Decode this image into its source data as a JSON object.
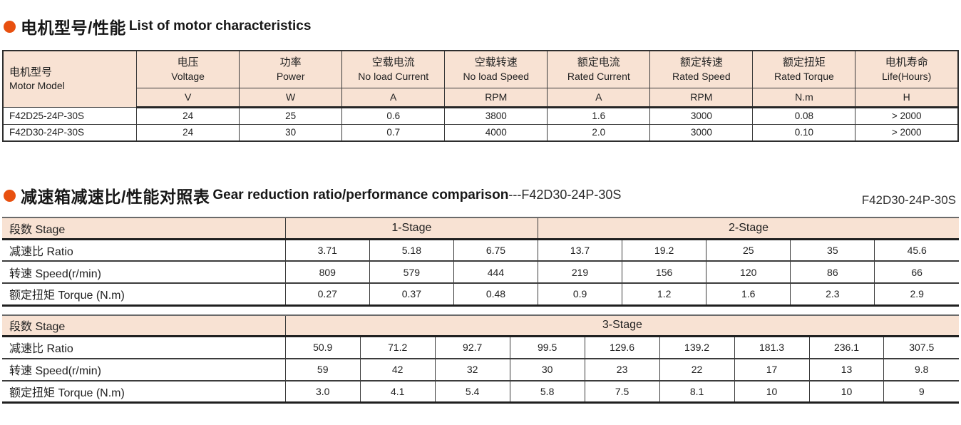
{
  "accent_color": "#e8500f",
  "header_bg": "#f8e2d3",
  "section1": {
    "title_zh": "电机型号/性能",
    "title_en": "List of motor characteristics"
  },
  "motor_table": {
    "model_header_zh": "电机型号",
    "model_header_en": "Motor Model",
    "columns": [
      {
        "zh": "电压",
        "en": "Voltage",
        "unit": "V"
      },
      {
        "zh": "功率",
        "en": "Power",
        "unit": "W"
      },
      {
        "zh": "空载电流",
        "en": "No load Current",
        "unit": "A"
      },
      {
        "zh": "空载转速",
        "en": "No load Speed",
        "unit": "RPM"
      },
      {
        "zh": "额定电流",
        "en": "Rated Current",
        "unit": "A"
      },
      {
        "zh": "额定转速",
        "en": "Rated Speed",
        "unit": "RPM"
      },
      {
        "zh": "额定扭矩",
        "en": "Rated Torque",
        "unit": "N.m"
      },
      {
        "zh": "电机寿命",
        "en": "Life(Hours)",
        "unit": "H"
      }
    ],
    "rows": [
      {
        "model": "F42D25-24P-30S",
        "values": [
          "24",
          "25",
          "0.6",
          "3800",
          "1.6",
          "3000",
          "0.08",
          "> 2000"
        ]
      },
      {
        "model": "F42D30-24P-30S",
        "values": [
          "24",
          "30",
          "0.7",
          "4000",
          "2.0",
          "3000",
          "0.10",
          "> 2000"
        ]
      }
    ]
  },
  "section2": {
    "title_zh": "减速箱减速比/性能对照表",
    "title_en": "Gear reduction ratio/performance comparison",
    "title_suffix": "---F42D30-24P-30S",
    "model_label_right": "F42D30-24P-30S"
  },
  "gear_table_stage12": {
    "stage_header": "段数 Stage",
    "groups": [
      {
        "label": "1-Stage",
        "span": 3
      },
      {
        "label": "2-Stage",
        "span": 5
      }
    ],
    "rows": [
      {
        "label": "减速比 Ratio",
        "values": [
          "3.71",
          "5.18",
          "6.75",
          "13.7",
          "19.2",
          "25",
          "35",
          "45.6"
        ]
      },
      {
        "label": "转速 Speed(r/min)",
        "values": [
          "809",
          "579",
          "444",
          "219",
          "156",
          "120",
          "86",
          "66"
        ]
      },
      {
        "label": "额定扭矩 Torque (N.m)",
        "values": [
          "0.27",
          "0.37",
          "0.48",
          "0.9",
          "1.2",
          "1.6",
          "2.3",
          "2.9"
        ]
      }
    ]
  },
  "gear_table_stage3": {
    "stage_header": "段数 Stage",
    "groups": [
      {
        "label": "3-Stage",
        "span": 9
      }
    ],
    "rows": [
      {
        "label": "减速比 Ratio",
        "values": [
          "50.9",
          "71.2",
          "92.7",
          "99.5",
          "129.6",
          "139.2",
          "181.3",
          "236.1",
          "307.5"
        ]
      },
      {
        "label": "转速 Speed(r/min)",
        "values": [
          "59",
          "42",
          "32",
          "30",
          "23",
          "22",
          "17",
          "13",
          "9.8"
        ]
      },
      {
        "label": "额定扭矩 Torque (N.m)",
        "values": [
          "3.0",
          "4.1",
          "5.4",
          "5.8",
          "7.5",
          "8.1",
          "10",
          "10",
          "9"
        ]
      }
    ]
  }
}
